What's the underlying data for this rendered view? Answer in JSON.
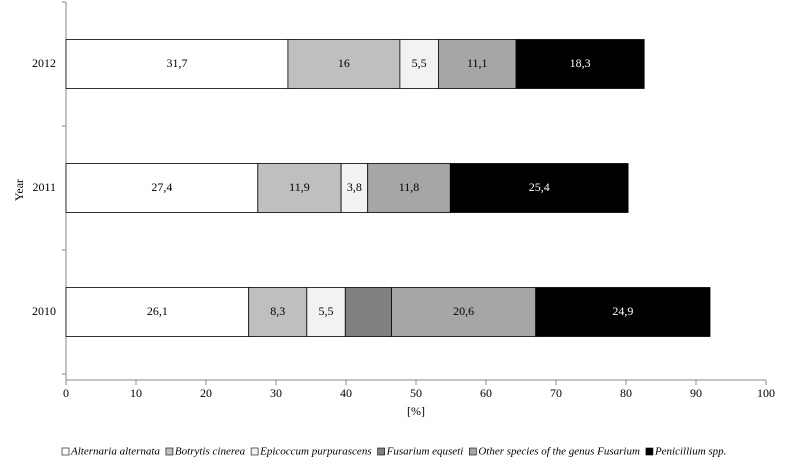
{
  "chart_data": {
    "type": "stacked-bar",
    "orientation": "horizontal",
    "y_label": "Year",
    "x_label": "[%]",
    "categories": [
      "2012",
      "2011",
      "2010"
    ],
    "series": [
      {
        "name": "Alternaria alternata",
        "color": "#ffffff",
        "values": [
          31.7,
          27.4,
          26.1
        ],
        "value_labels": [
          "31,7",
          "27,4",
          "26,1"
        ]
      },
      {
        "name": "Botrytis cinerea",
        "color": "#bfbfbf",
        "values": [
          16,
          11.9,
          8.3
        ],
        "value_labels": [
          "16",
          "11,9",
          "8,3"
        ]
      },
      {
        "name": "Epicoccum purpurascens",
        "color": "#f2f2f2",
        "values": [
          5.5,
          3.8,
          5.5
        ],
        "value_labels": [
          "5,5",
          "3,8",
          "5,5"
        ]
      },
      {
        "name": "Fusarium equseti",
        "color": "#808080",
        "values": [
          null,
          null,
          6.6
        ],
        "value_labels": [
          null,
          null,
          null
        ]
      },
      {
        "name": "Other species of the genus Fusarium",
        "color": "#a6a6a6",
        "values": [
          11.1,
          11.8,
          20.6
        ],
        "value_labels": [
          "11,1",
          "11,8",
          "20,6"
        ]
      },
      {
        "name": "Penicillium spp.",
        "color": "#000000",
        "values": [
          18.3,
          25.4,
          24.9
        ],
        "value_labels": [
          "18,3",
          "25,4",
          "24,9"
        ]
      }
    ],
    "xlim": [
      0,
      100
    ],
    "xticks": [
      0,
      10,
      20,
      30,
      40,
      50,
      60,
      70,
      80,
      90,
      100
    ],
    "legend": "bottom"
  }
}
